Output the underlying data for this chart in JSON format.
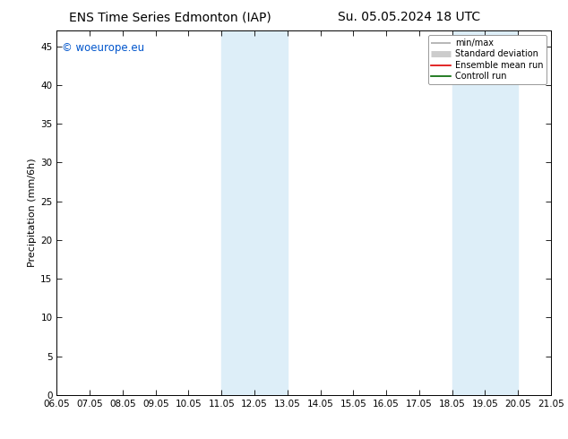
{
  "title_left": "ENS Time Series Edmonton (IAP)",
  "title_right": "Su. 05.05.2024 18 UTC",
  "ylabel": "Precipitation (mm/6h)",
  "xlim_min": 0,
  "xlim_max": 15,
  "ylim": [
    0,
    47
  ],
  "xtick_positions": [
    0,
    1,
    2,
    3,
    4,
    5,
    6,
    7,
    8,
    9,
    10,
    11,
    12,
    13,
    14,
    15
  ],
  "xtick_labels": [
    "06.05",
    "07.05",
    "08.05",
    "09.05",
    "10.05",
    "11.05",
    "12.05",
    "13.05",
    "14.05",
    "15.05",
    "16.05",
    "17.05",
    "18.05",
    "19.05",
    "20.05",
    "21.05"
  ],
  "yticks": [
    0,
    5,
    10,
    15,
    20,
    25,
    30,
    35,
    40,
    45
  ],
  "shaded_bands": [
    {
      "x_start": 5,
      "x_end": 7
    },
    {
      "x_start": 12,
      "x_end": 14
    }
  ],
  "band_color": "#ddeef8",
  "watermark_text": "© woeurope.eu",
  "watermark_color": "#0055cc",
  "legend_items": [
    {
      "label": "min/max",
      "color": "#aaaaaa",
      "lw": 1.2
    },
    {
      "label": "Standard deviation",
      "color": "#cccccc",
      "lw": 5
    },
    {
      "label": "Ensemble mean run",
      "color": "#dd0000",
      "lw": 1.2
    },
    {
      "label": "Controll run",
      "color": "#006600",
      "lw": 1.2
    }
  ],
  "background_color": "#ffffff",
  "title_fontsize": 10,
  "axis_fontsize": 8,
  "tick_fontsize": 7.5
}
